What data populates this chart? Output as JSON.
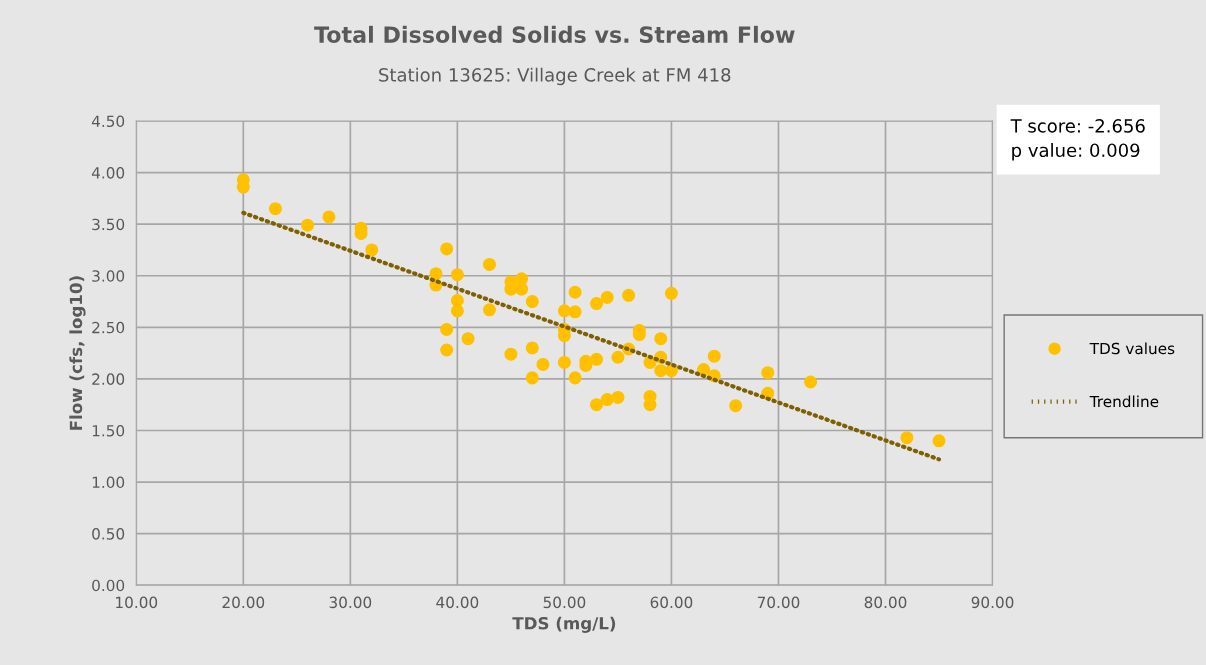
{
  "chart_data": {
    "type": "scatter",
    "title": "Total Dissolved Solids vs. Stream Flow",
    "subtitle": "Station 13625: Village Creek at FM 418",
    "xlabel": "TDS (mg/L)",
    "ylabel": "Flow (cfs, log10)",
    "annotations": [
      "T score: -2.656",
      "p value: 0.009"
    ],
    "series": [
      {
        "name": "TDS values",
        "color": "#ffc000",
        "marker": "circle",
        "x": [
          20,
          20,
          23,
          26,
          28,
          31,
          31,
          32,
          38,
          38,
          39,
          39,
          39,
          40,
          40,
          40,
          41,
          43,
          43,
          45,
          45,
          45,
          46,
          46,
          47,
          47,
          47,
          48,
          50,
          50,
          50,
          50,
          51,
          51,
          51,
          52,
          52,
          53,
          53,
          53,
          54,
          54,
          55,
          55,
          56,
          56,
          57,
          57,
          58,
          58,
          58,
          59,
          59,
          59,
          60,
          60,
          63,
          64,
          64,
          66,
          69,
          69,
          73,
          82,
          85
        ],
        "values": [
          3.93,
          3.86,
          3.65,
          3.49,
          3.57,
          3.46,
          3.41,
          3.25,
          3.02,
          2.91,
          3.26,
          2.48,
          2.28,
          3.01,
          2.76,
          2.66,
          2.39,
          3.11,
          2.67,
          2.94,
          2.87,
          2.24,
          2.97,
          2.87,
          2.75,
          2.3,
          2.01,
          2.14,
          2.66,
          2.48,
          2.42,
          2.16,
          2.84,
          2.65,
          2.01,
          2.17,
          2.13,
          2.73,
          2.19,
          1.75,
          2.79,
          1.8,
          2.21,
          1.82,
          2.81,
          2.29,
          2.47,
          2.43,
          2.16,
          1.83,
          1.75,
          2.39,
          2.21,
          2.08,
          2.83,
          2.08,
          2.09,
          2.22,
          2.03,
          1.74,
          2.06,
          1.86,
          1.97,
          1.43,
          1.4
        ]
      },
      {
        "name": "Trendline",
        "color": "#7f6000",
        "type": "line",
        "line_style": "dotted",
        "marker": "none",
        "x": [
          20,
          85
        ],
        "values": [
          3.61,
          1.22
        ]
      }
    ],
    "xlim": [
      10,
      90
    ],
    "ylim": [
      0,
      4.5
    ],
    "xticks": [
      {
        "value": 10,
        "label": "10.00"
      },
      {
        "value": 20,
        "label": "20.00"
      },
      {
        "value": 30,
        "label": "30.00"
      },
      {
        "value": 40,
        "label": "40.00"
      },
      {
        "value": 50,
        "label": "50.00"
      },
      {
        "value": 60,
        "label": "60.00"
      },
      {
        "value": 70,
        "label": "70.00"
      },
      {
        "value": 80,
        "label": "80.00"
      },
      {
        "value": 90,
        "label": "90.00"
      }
    ],
    "yticks": [
      {
        "value": 0,
        "label": "0.00"
      },
      {
        "value": 0.5,
        "label": "0.50"
      },
      {
        "value": 1,
        "label": "1.00"
      },
      {
        "value": 1.5,
        "label": "1.50"
      },
      {
        "value": 2,
        "label": "2.00"
      },
      {
        "value": 2.5,
        "label": "2.50"
      },
      {
        "value": 3,
        "label": "3.00"
      },
      {
        "value": 3.5,
        "label": "3.50"
      },
      {
        "value": 4,
        "label": "4.00"
      },
      {
        "value": 4.5,
        "label": "4.50"
      }
    ],
    "grid": true,
    "legend": "right"
  }
}
